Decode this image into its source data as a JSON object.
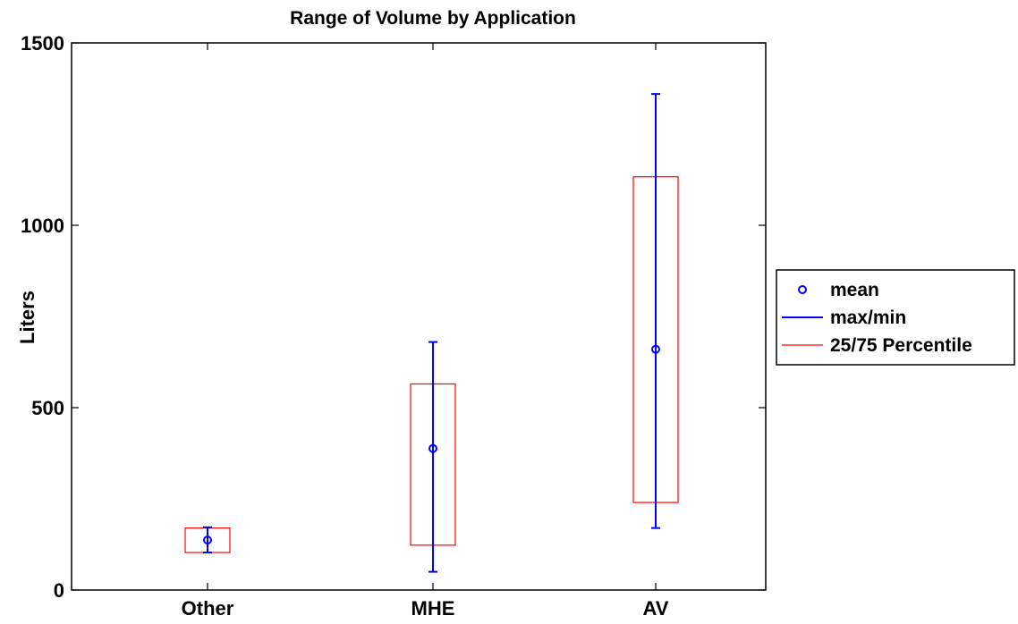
{
  "chart_data": {
    "type": "box",
    "title": "Range of Volume by Application",
    "xlabel": "",
    "ylabel": "Liters",
    "ylim": [
      0,
      1500
    ],
    "yticks": [
      0,
      500,
      1000,
      1500
    ],
    "categories": [
      "Other",
      "MHE",
      "AV"
    ],
    "series": [
      {
        "name": "mean",
        "values": [
          137,
          388,
          660
        ],
        "color": "#0000ff",
        "marker": "circle"
      },
      {
        "name": "max/min",
        "min": [
          103,
          50,
          170
        ],
        "max": [
          172,
          680,
          1360
        ],
        "color": "#0000ff"
      },
      {
        "name": "25/75 Percentile",
        "q25": [
          103,
          123,
          240
        ],
        "q75": [
          170,
          565,
          1133
        ],
        "color": "#ff0000"
      }
    ],
    "grid": false,
    "legend_position": "outside-right"
  }
}
